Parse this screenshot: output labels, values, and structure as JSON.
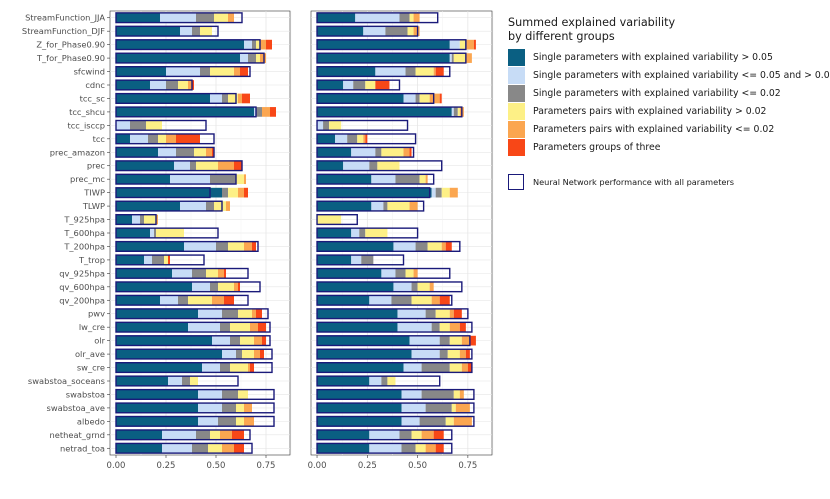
{
  "chart_data": {
    "type": "bar",
    "orientation": "horizontal",
    "stacked": true,
    "panels": 2,
    "legend_title": "Summed explained variability\nby different groups",
    "legend": [
      {
        "key": "s_gt005",
        "label": "Single parameters with explained variability > 0.05",
        "color": "#0a5f82"
      },
      {
        "key": "s_002_005",
        "label": "Single parameters with explained variability <= 0.05 and > 0.02",
        "color": "#c7dcf6"
      },
      {
        "key": "s_le002",
        "label": "Single parameters with explained variability <= 0.02",
        "color": "#888888"
      },
      {
        "key": "p_gt002",
        "label": "Parameters pairs with explained variability > 0.02",
        "color": "#fdf086"
      },
      {
        "key": "p_le002",
        "label": "Parameters pairs with explained variability <= 0.02",
        "color": "#fba650"
      },
      {
        "key": "g3",
        "label": "Parameters groups of three",
        "color": "#f84717"
      }
    ],
    "outline_legend": {
      "label": "Neural Network performance with all parameters",
      "color": "#1a1a7a"
    },
    "xlim": [
      -0.03,
      0.87
    ],
    "xticks": [
      0.0,
      0.25,
      0.5,
      0.75
    ],
    "xtick_labels": [
      "0.00",
      "0.25",
      "0.50",
      "0.75"
    ],
    "grid": true,
    "legend_position": "right",
    "categories": [
      "StreamFunction_JJA",
      "StreamFunction_DJF",
      "Z_for_Phase0.90",
      "T_for_Phase0.90",
      "sfcwind",
      "cdnc",
      "tcc_sc",
      "tcc_shcu",
      "tcc_isccp",
      "tcc",
      "prec_amazon",
      "prec",
      "prec_mc",
      "TIWP",
      "TLWP",
      "T_925hpa",
      "T_600hpa",
      "T_200hpa",
      "T_trop",
      "qv_925hpa",
      "qv_600hpa",
      "qv_200hpa",
      "pwv",
      "lw_cre",
      "olr",
      "olr_ave",
      "sw_cre",
      "swabstoa_soceans",
      "swabstoa",
      "swabstoa_ave",
      "albedo",
      "netheat_grnd",
      "netrad_toa"
    ],
    "panel_data": [
      {
        "segments": [
          [
            0.22,
            0.18,
            0.09,
            0.07,
            0.03,
            0.0
          ],
          [
            0.32,
            0.06,
            0.04,
            0.06,
            0.0,
            0.0
          ],
          [
            0.64,
            0.04,
            0.02,
            0.02,
            0.03,
            0.03
          ],
          [
            0.62,
            0.04,
            0.04,
            0.02,
            0.03,
            0.0
          ],
          [
            0.25,
            0.17,
            0.05,
            0.12,
            0.03,
            0.04
          ],
          [
            0.17,
            0.08,
            0.06,
            0.05,
            0.02,
            0.01
          ],
          [
            0.47,
            0.06,
            0.03,
            0.05,
            0.02,
            0.04
          ],
          [
            0.69,
            0.01,
            0.03,
            0.0,
            0.04,
            0.03
          ],
          [
            0.0,
            0.07,
            0.08,
            0.08,
            0.0,
            0.0
          ],
          [
            0.07,
            0.09,
            0.05,
            0.04,
            0.05,
            0.12
          ],
          [
            0.21,
            0.09,
            0.09,
            0.06,
            0.03,
            0.01
          ],
          [
            0.29,
            0.08,
            0.03,
            0.11,
            0.08,
            0.04
          ],
          [
            0.27,
            0.2,
            0.13,
            0.04,
            0.01,
            0.0
          ],
          [
            0.53,
            0.0,
            0.03,
            0.05,
            0.03,
            0.02
          ],
          [
            0.32,
            0.13,
            0.04,
            0.06,
            0.02,
            0.0
          ],
          [
            0.08,
            0.04,
            0.02,
            0.06,
            0.01,
            0.0
          ],
          [
            0.17,
            0.02,
            0.01,
            0.14,
            0.0,
            0.0
          ],
          [
            0.34,
            0.16,
            0.06,
            0.08,
            0.04,
            0.02
          ],
          [
            0.14,
            0.04,
            0.06,
            0.02,
            0.0,
            0.01
          ],
          [
            0.28,
            0.1,
            0.07,
            0.06,
            0.03,
            0.01
          ],
          [
            0.38,
            0.09,
            0.04,
            0.08,
            0.02,
            0.01
          ],
          [
            0.22,
            0.09,
            0.05,
            0.12,
            0.06,
            0.05
          ],
          [
            0.41,
            0.12,
            0.08,
            0.07,
            0.02,
            0.03
          ],
          [
            0.36,
            0.16,
            0.05,
            0.1,
            0.04,
            0.04
          ],
          [
            0.48,
            0.09,
            0.05,
            0.07,
            0.04,
            0.02
          ],
          [
            0.53,
            0.07,
            0.03,
            0.06,
            0.03,
            0.02
          ],
          [
            0.43,
            0.09,
            0.05,
            0.09,
            0.01,
            0.02
          ],
          [
            0.26,
            0.07,
            0.04,
            0.04,
            0.0,
            0.0
          ],
          [
            0.41,
            0.12,
            0.08,
            0.05,
            0.0,
            0.0
          ],
          [
            0.41,
            0.12,
            0.07,
            0.04,
            0.04,
            0.0
          ],
          [
            0.41,
            0.1,
            0.09,
            0.04,
            0.05,
            0.0
          ],
          [
            0.23,
            0.17,
            0.07,
            0.05,
            0.06,
            0.06
          ],
          [
            0.23,
            0.15,
            0.08,
            0.07,
            0.06,
            0.05
          ]
        ],
        "nn_total": [
          0.63,
          0.51,
          0.72,
          0.74,
          0.67,
          0.38,
          0.6,
          0.7,
          0.45,
          0.49,
          0.49,
          0.63,
          0.6,
          0.47,
          0.53,
          0.2,
          0.51,
          0.71,
          0.44,
          0.66,
          0.72,
          0.66,
          0.76,
          0.77,
          0.77,
          0.78,
          0.78,
          0.61,
          0.79,
          0.79,
          0.79,
          0.67,
          0.68
        ]
      },
      {
        "segments": [
          [
            0.19,
            0.22,
            0.05,
            0.02,
            0.03,
            0.0
          ],
          [
            0.23,
            0.11,
            0.11,
            0.03,
            0.03,
            0.0
          ],
          [
            0.66,
            0.05,
            0.0,
            0.03,
            0.04,
            0.01
          ],
          [
            0.66,
            0.01,
            0.01,
            0.06,
            0.03,
            0.0
          ],
          [
            0.29,
            0.15,
            0.05,
            0.09,
            0.01,
            0.04
          ],
          [
            0.13,
            0.05,
            0.06,
            0.05,
            0.0,
            0.07
          ],
          [
            0.43,
            0.06,
            0.02,
            0.05,
            0.05,
            0.01
          ],
          [
            0.67,
            0.01,
            0.02,
            0.01,
            0.02,
            0.0
          ],
          [
            0.0,
            0.03,
            0.03,
            0.06,
            0.0,
            0.0
          ],
          [
            0.09,
            0.06,
            0.05,
            0.03,
            0.01,
            0.01
          ],
          [
            0.17,
            0.12,
            0.03,
            0.11,
            0.03,
            0.01
          ],
          [
            0.13,
            0.13,
            0.04,
            0.11,
            0.0,
            0.0
          ],
          [
            0.27,
            0.12,
            0.12,
            0.03,
            0.01,
            0.0
          ],
          [
            0.57,
            0.02,
            0.03,
            0.04,
            0.04,
            0.0
          ],
          [
            0.27,
            0.06,
            0.02,
            0.11,
            0.04,
            0.0
          ],
          [
            0.0,
            0.0,
            0.0,
            0.12,
            0.0,
            0.0
          ],
          [
            0.17,
            0.04,
            0.03,
            0.11,
            0.0,
            0.0
          ],
          [
            0.38,
            0.11,
            0.06,
            0.07,
            0.02,
            0.03
          ],
          [
            0.17,
            0.05,
            0.06,
            0.0,
            0.0,
            0.0
          ],
          [
            0.32,
            0.07,
            0.05,
            0.04,
            0.02,
            0.0
          ],
          [
            0.38,
            0.09,
            0.03,
            0.06,
            0.02,
            0.0
          ],
          [
            0.26,
            0.11,
            0.1,
            0.1,
            0.04,
            0.05
          ],
          [
            0.4,
            0.14,
            0.05,
            0.07,
            0.02,
            0.04
          ],
          [
            0.4,
            0.17,
            0.04,
            0.05,
            0.05,
            0.03
          ],
          [
            0.46,
            0.15,
            0.05,
            0.06,
            0.04,
            0.03
          ],
          [
            0.47,
            0.14,
            0.04,
            0.06,
            0.03,
            0.02
          ],
          [
            0.43,
            0.09,
            0.14,
            0.06,
            0.03,
            0.02
          ],
          [
            0.26,
            0.06,
            0.03,
            0.04,
            0.0,
            0.0
          ],
          [
            0.42,
            0.1,
            0.16,
            0.03,
            0.02,
            0.0
          ],
          [
            0.42,
            0.12,
            0.13,
            0.02,
            0.07,
            0.0
          ],
          [
            0.42,
            0.09,
            0.13,
            0.04,
            0.09,
            0.0
          ],
          [
            0.26,
            0.15,
            0.06,
            0.05,
            0.06,
            0.05
          ],
          [
            0.26,
            0.16,
            0.07,
            0.05,
            0.05,
            0.04
          ]
        ],
        "nn_total": [
          0.6,
          0.5,
          0.74,
          0.74,
          0.66,
          0.41,
          0.58,
          0.72,
          0.45,
          0.49,
          0.48,
          0.62,
          0.58,
          0.56,
          0.53,
          0.2,
          0.5,
          0.71,
          0.43,
          0.66,
          0.72,
          0.67,
          0.75,
          0.77,
          0.76,
          0.77,
          0.77,
          0.61,
          0.78,
          0.78,
          0.78,
          0.67,
          0.67
        ]
      }
    ]
  }
}
